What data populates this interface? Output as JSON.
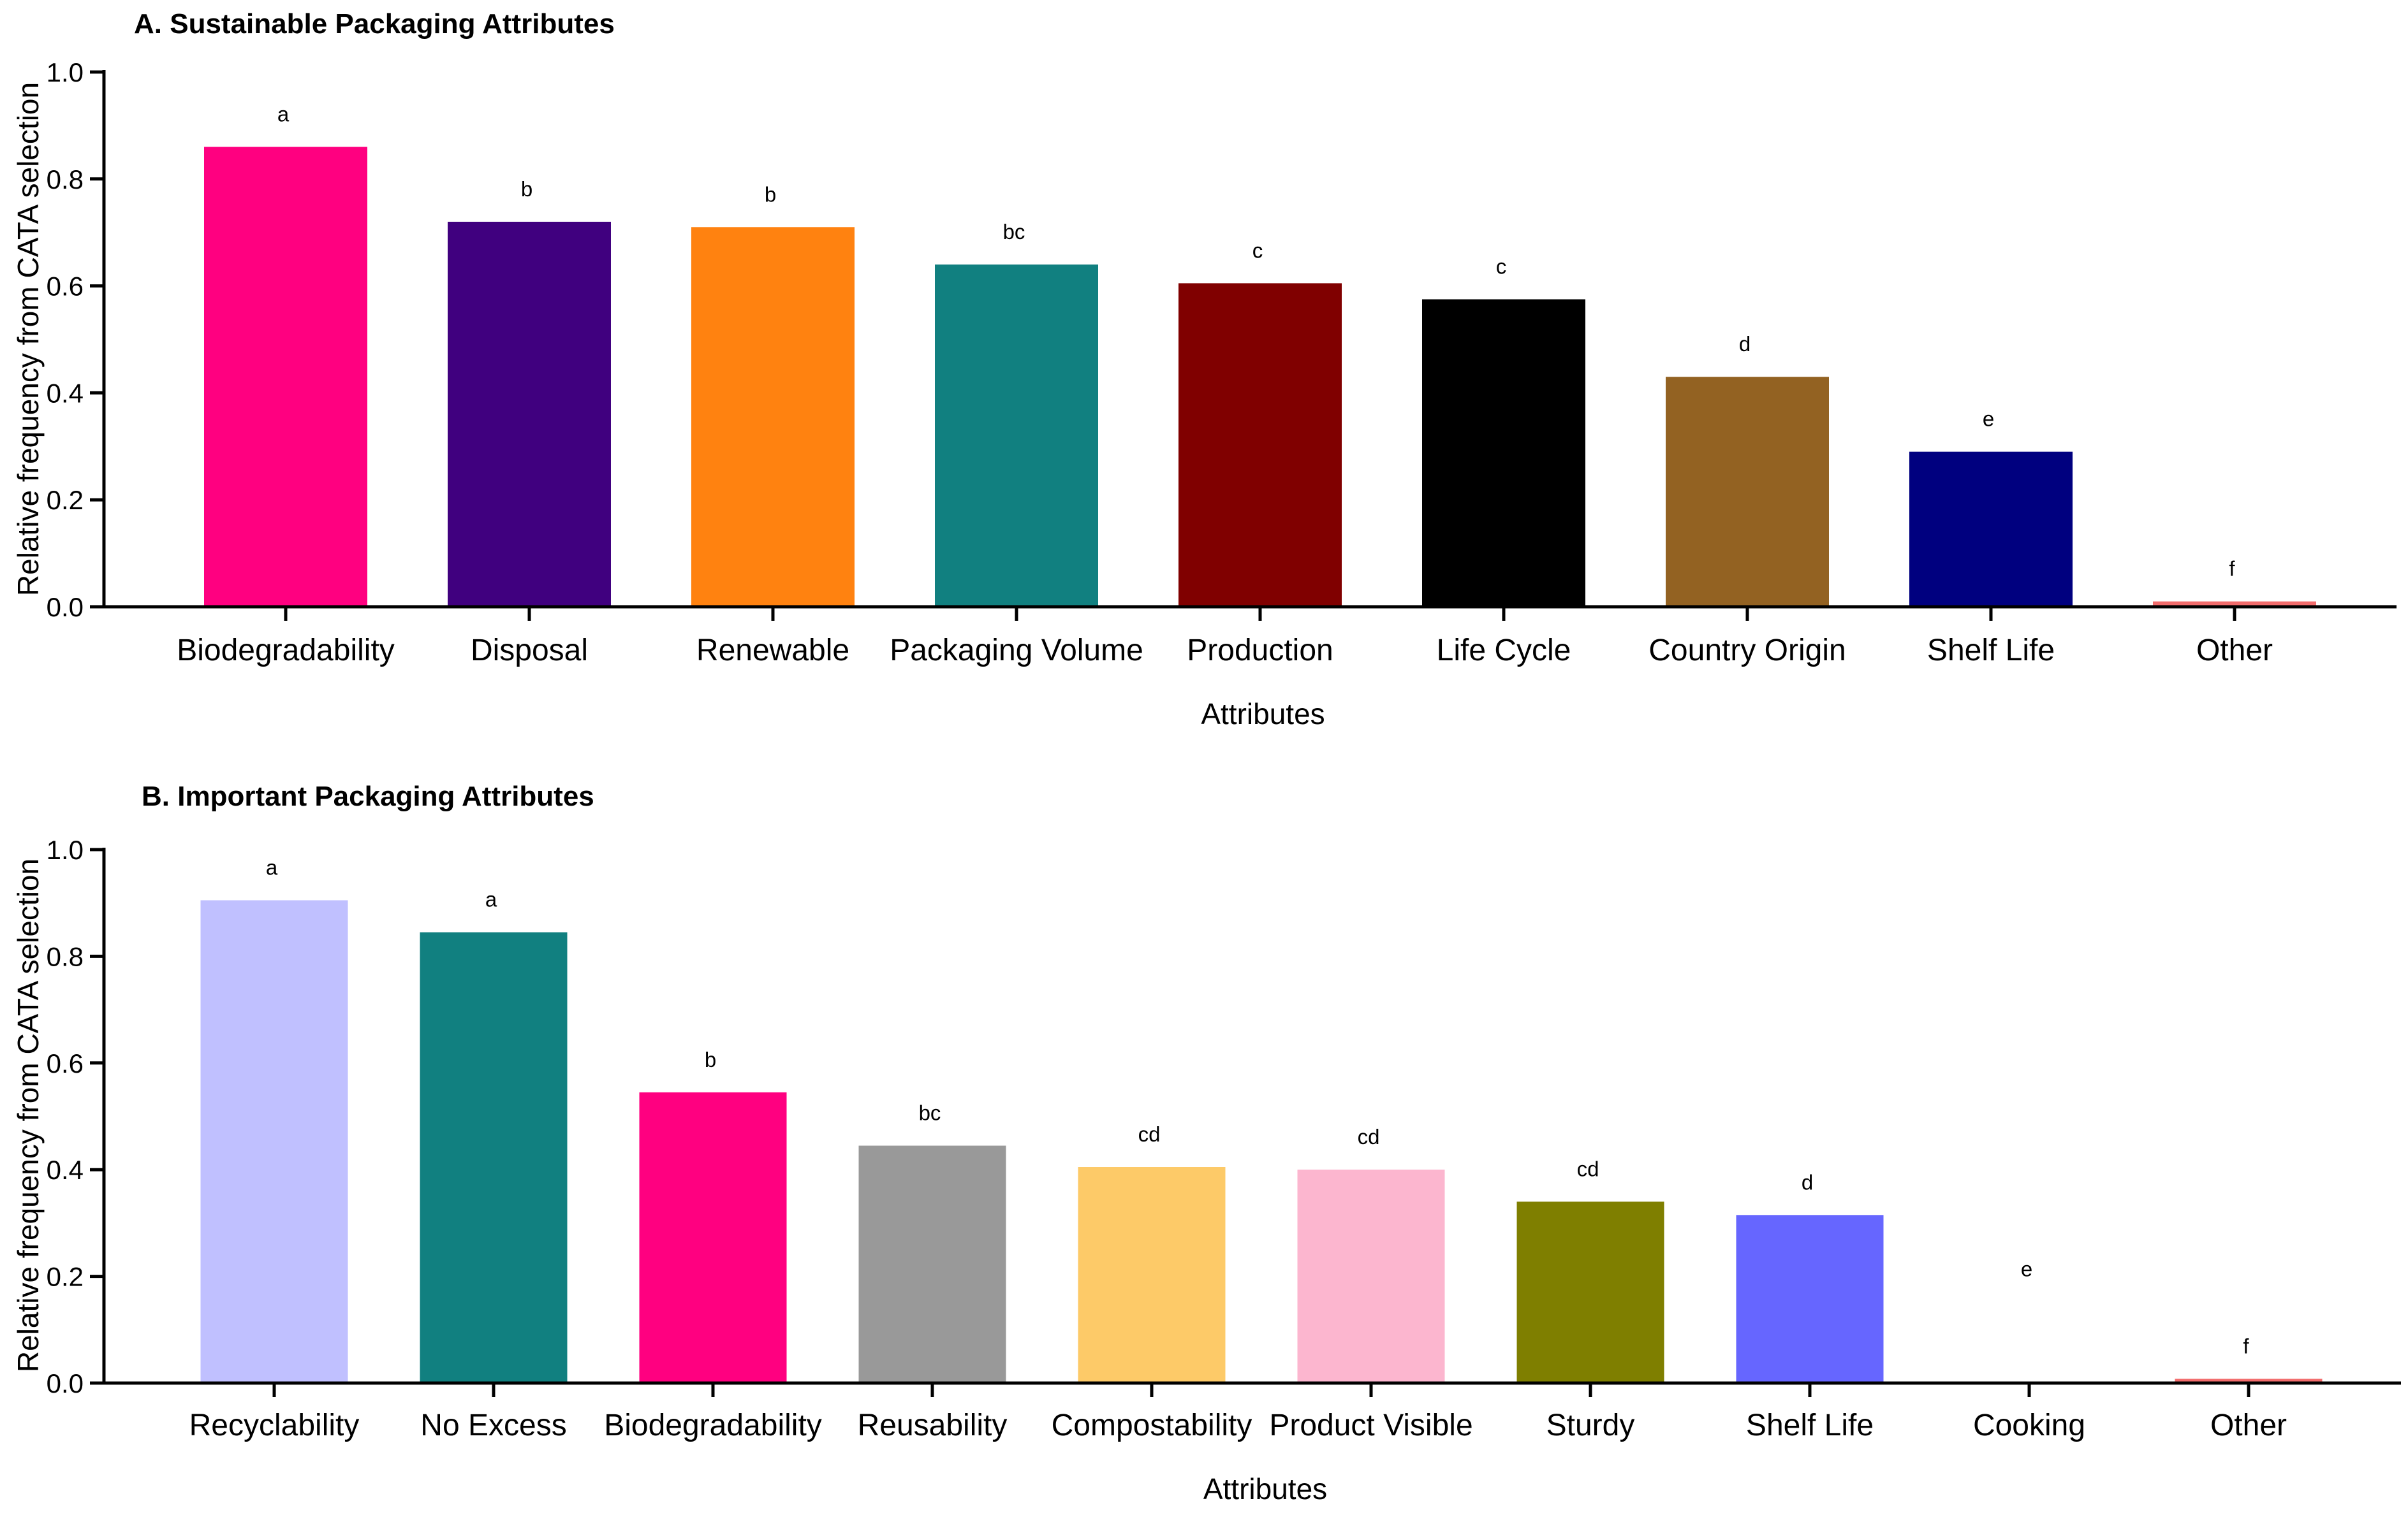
{
  "chart_data": [
    {
      "type": "bar",
      "title": "A. Sustainable Packaging Attributes",
      "xlabel": "Attributes",
      "ylabel": "Relative frequency from CATA selection",
      "ylim": [
        0,
        1
      ],
      "yticks": [
        "0.0",
        "0.2",
        "0.4",
        "0.6",
        "0.8",
        "1.0"
      ],
      "categories": [
        "Biodegradability",
        "Disposal",
        "Renewable",
        "Packaging Volume",
        "Production",
        "Life Cycle",
        "Country Origin",
        "Shelf Life",
        "Other"
      ],
      "values": [
        0.86,
        0.72,
        0.71,
        0.64,
        0.605,
        0.575,
        0.43,
        0.29,
        0.01
      ],
      "letters": [
        "a",
        "b",
        "b",
        "bc",
        "c",
        "c",
        "d",
        "e",
        "f"
      ],
      "colors": [
        "#FF0080",
        "#40007F",
        "#FF8210",
        "#118080",
        "#800000",
        "#000000",
        "#936222",
        "#00007F",
        "#F26C6C"
      ]
    },
    {
      "type": "bar",
      "title": "B. Important Packaging Attributes",
      "xlabel": "Attributes",
      "ylabel": "Relative frequency from CATA selection",
      "ylim": [
        0,
        1
      ],
      "yticks": [
        "0.0",
        "0.2",
        "0.4",
        "0.6",
        "0.8",
        "1.0"
      ],
      "categories": [
        "Recyclability",
        "No Excess",
        "Biodegradability",
        "Reusability",
        "Compostability",
        "Product Visible",
        "Sturdy",
        "Shelf Life",
        "Cooking",
        "Other"
      ],
      "values": [
        0.905,
        0.845,
        0.545,
        0.445,
        0.405,
        0.4,
        0.34,
        0.315,
        0.0,
        0.008
      ],
      "letters": [
        "a",
        "a",
        "b",
        "bc",
        "cd",
        "cd",
        "cd",
        "d",
        "e",
        "f"
      ],
      "colors": [
        "#C0C0FF",
        "#118080",
        "#FF0080",
        "#999999",
        "#FDCA68",
        "#FCB6CF",
        "#7F7F00",
        "#6666FF",
        "#FFFFFF",
        "#F26C6C"
      ]
    }
  ]
}
